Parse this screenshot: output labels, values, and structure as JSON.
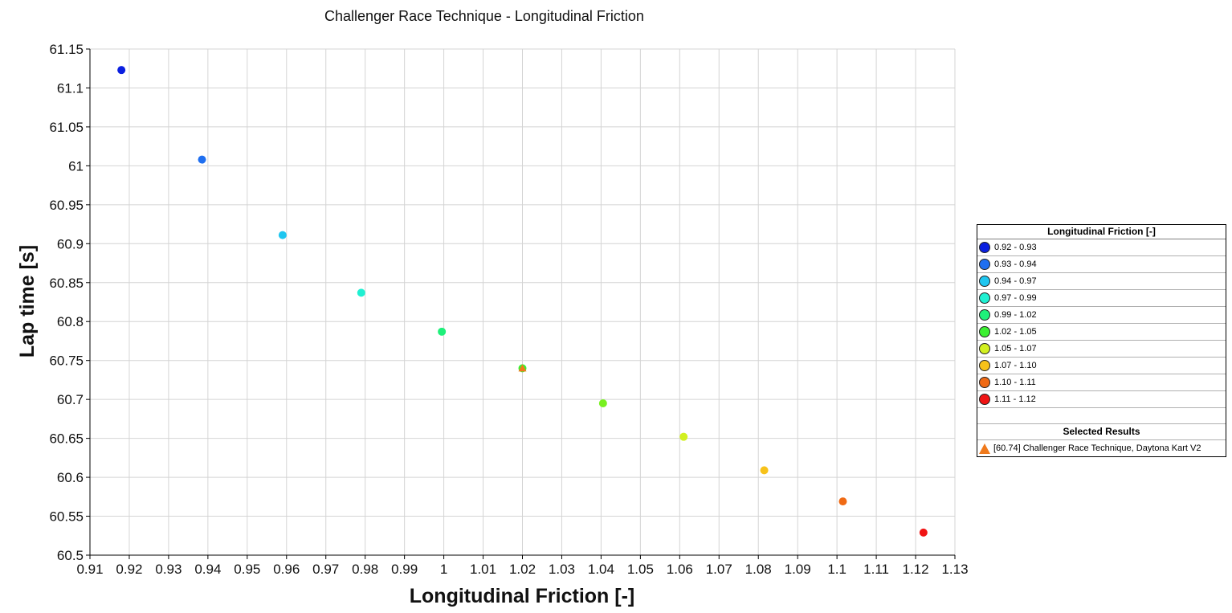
{
  "chart_data": {
    "type": "scatter",
    "title": "Challenger Race Technique - Longitudinal Friction",
    "xlabel": "Longitudinal Friction [-]",
    "ylabel": "Lap time [s]",
    "xlim": [
      0.91,
      1.13
    ],
    "ylim": [
      60.5,
      61.15
    ],
    "xticks": [
      "0.91",
      "0.92",
      "0.93",
      "0.94",
      "0.95",
      "0.96",
      "0.97",
      "0.98",
      "0.99",
      "1",
      "1.01",
      "1.02",
      "1.03",
      "1.04",
      "1.05",
      "1.06",
      "1.07",
      "1.08",
      "1.09",
      "1.1",
      "1.11",
      "1.12",
      "1.13"
    ],
    "yticks": [
      "60.5",
      "60.55",
      "60.6",
      "60.65",
      "60.7",
      "60.75",
      "60.8",
      "60.85",
      "60.9",
      "60.95",
      "61",
      "61.05",
      "61.1",
      "61.15"
    ],
    "grid": true,
    "legend_position": "right",
    "points": [
      {
        "x": 0.918,
        "y": 61.123,
        "color": "#0a1fe0"
      },
      {
        "x": 0.9385,
        "y": 61.008,
        "color": "#1f6ff0"
      },
      {
        "x": 0.959,
        "y": 60.911,
        "color": "#1ec6f0"
      },
      {
        "x": 0.979,
        "y": 60.837,
        "color": "#1ff0d2"
      },
      {
        "x": 0.9995,
        "y": 60.787,
        "color": "#1ef07a"
      },
      {
        "x": 1.02,
        "y": 60.74,
        "color": "#3cf032"
      },
      {
        "x": 1.0405,
        "y": 60.695,
        "color": "#78f020"
      },
      {
        "x": 1.061,
        "y": 60.652,
        "color": "#d2f020"
      },
      {
        "x": 1.0815,
        "y": 60.609,
        "color": "#f7c21a"
      },
      {
        "x": 1.1015,
        "y": 60.569,
        "color": "#f06a14"
      },
      {
        "x": 1.122,
        "y": 60.529,
        "color": "#f01414"
      }
    ],
    "selected": [
      {
        "x": 1.02,
        "y": 60.74,
        "color": "#f07a1c",
        "marker": "triangle"
      }
    ],
    "legend": {
      "title": "Longitudinal Friction [-]",
      "items": [
        {
          "label": "0.92 - 0.93",
          "color": "#0a1fe0"
        },
        {
          "label": "0.93 - 0.94",
          "color": "#1f6ff0"
        },
        {
          "label": "0.94 - 0.97",
          "color": "#1ec6f0"
        },
        {
          "label": "0.97 - 0.99",
          "color": "#1ff0d2"
        },
        {
          "label": "0.99 - 1.02",
          "color": "#1ef07a"
        },
        {
          "label": "1.02 - 1.05",
          "color": "#3cf032"
        },
        {
          "label": "1.05 - 1.07",
          "color": "#d2f020"
        },
        {
          "label": "1.07 - 1.10",
          "color": "#f7c21a"
        },
        {
          "label": "1.10 - 1.11",
          "color": "#f06a14"
        },
        {
          "label": "1.11 - 1.12",
          "color": "#f01414"
        }
      ],
      "selected_title": "Selected Results",
      "selected_label": "[60.74] Challenger Race Technique, Daytona Kart V2"
    }
  }
}
